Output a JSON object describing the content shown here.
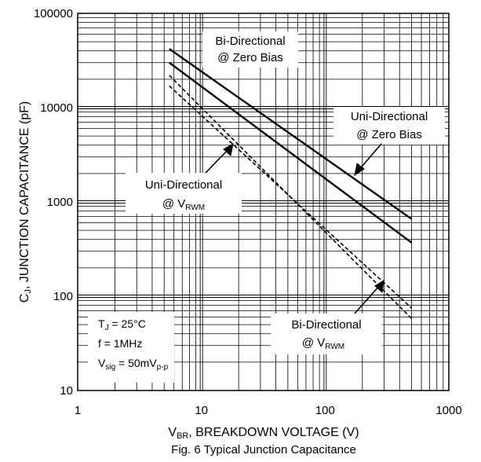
{
  "chart_data": {
    "type": "line",
    "title": "",
    "caption": "Fig. 6 Typical Junction Capacitance",
    "xlabel": {
      "main": "V",
      "sub": "BR",
      "rest": ", BREAKDOWN VOLTAGE (V)"
    },
    "ylabel": {
      "main": "C",
      "sub": "J",
      "rest": ", JUNCTION CAPACITANCE (pF)"
    },
    "x_scale": "log",
    "y_scale": "log",
    "xlim": [
      1,
      1000
    ],
    "ylim": [
      10,
      100000
    ],
    "x_tick_labels": [
      "1",
      "10",
      "100",
      "1000"
    ],
    "y_tick_labels": [
      "10",
      "100",
      "1000",
      "10000",
      "100000"
    ],
    "grid": true,
    "conditions": {
      "tj": "T",
      "tj_sub": "J",
      "tj_rest": " = 25°C",
      "freq": "f = 1MHz",
      "vsig": "V",
      "vsig_sub": "sig",
      "vsig_mid": " = 50mV",
      "vsig_sub2": "p-p"
    },
    "series": [
      {
        "name": "Bi-Directional @ Zero Bias",
        "style": "solid",
        "x": [
          5.5,
          500
        ],
        "y": [
          42000,
          660
        ]
      },
      {
        "name": "Uni-Directional @ Zero Bias",
        "style": "solid",
        "x": [
          5.5,
          500
        ],
        "y": [
          30000,
          370
        ]
      },
      {
        "name": "Uni-Directional @ VRWM",
        "style": "dashed",
        "x": [
          5.5,
          500
        ],
        "y": [
          22000,
          58
        ]
      },
      {
        "name": "Bi-Directional @ VRWM",
        "style": "dashed",
        "x": [
          5.5,
          500
        ],
        "y": [
          17000,
          75
        ]
      }
    ],
    "annotations": {
      "bi_zero": {
        "line1": "Bi-Directional",
        "line2": "@ Zero Bias"
      },
      "uni_zero": {
        "line1": "Uni-Directional",
        "line2": "@ Zero Bias"
      },
      "uni_vrwm": {
        "line1": "Uni-Directional",
        "line2": "@ V",
        "line2_sub": "RWM"
      },
      "bi_vrwm": {
        "line1": "Bi-Directional",
        "line2": "@ V",
        "line2_sub": "RWM"
      }
    }
  }
}
